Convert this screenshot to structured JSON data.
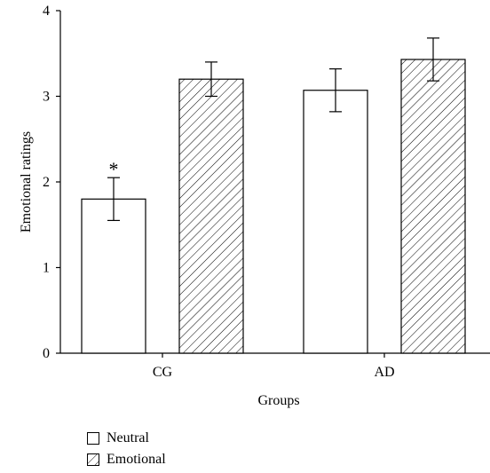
{
  "chart_data": {
    "type": "bar",
    "xlabel": "Groups",
    "ylabel": "Emotional ratings",
    "categories": [
      "CG",
      "AD"
    ],
    "ylim": [
      0,
      4
    ],
    "yticks": [
      "0",
      "1",
      "2",
      "3",
      "4"
    ],
    "series": [
      {
        "name": "Neutral",
        "values": [
          1.8,
          3.07
        ],
        "errors": [
          0.25,
          0.25
        ],
        "fill": "white"
      },
      {
        "name": "Emotional",
        "values": [
          3.2,
          3.43
        ],
        "errors": [
          0.2,
          0.25
        ],
        "fill": "hatched"
      }
    ],
    "annotations": [
      {
        "text": "*",
        "category": "CG",
        "series": "Neutral"
      }
    ],
    "legend_position": "bottom-left",
    "grid": false
  }
}
